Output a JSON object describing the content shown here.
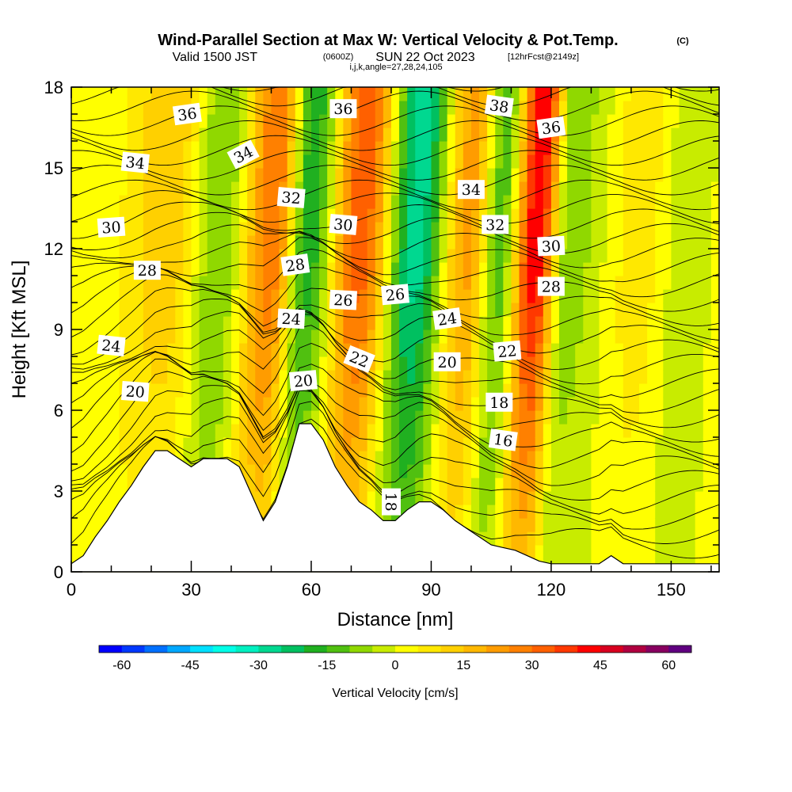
{
  "header": {
    "title": "Wind-Parallel Section at Max W: Vertical Velocity & Pot.Temp.",
    "copyright": "(C)",
    "valid_prefix": "Valid 1500 JST",
    "valid_utc": "(0600Z)",
    "valid_date": "SUN 22 Oct 2023",
    "forecast": "[12hrFcst@2149z]",
    "indices": "i,j,k,angle=27,28,24,105"
  },
  "chart_data": {
    "type": "heatmap",
    "xlabel": "Distance [nm]",
    "ylabel": "Height [Kft MSL]",
    "xlim": [
      0,
      162
    ],
    "ylim": [
      0,
      18
    ],
    "xticks": [
      "0",
      "30",
      "60",
      "90",
      "120",
      "150"
    ],
    "yticks": [
      "0",
      "3",
      "6",
      "9",
      "12",
      "15",
      "18"
    ],
    "terrain": {
      "x": [
        0,
        3,
        6,
        9,
        12,
        15,
        18,
        21,
        24,
        27,
        30,
        33,
        36,
        39,
        42,
        45,
        48,
        51,
        54,
        57,
        60,
        63,
        66,
        69,
        72,
        75,
        78,
        81,
        84,
        87,
        90,
        93,
        96,
        99,
        102,
        105,
        108,
        111,
        114,
        117,
        120,
        123,
        126,
        129,
        132,
        135,
        138,
        141,
        144,
        147,
        150,
        153,
        156,
        159,
        162
      ],
      "height_kft": [
        0.3,
        0.6,
        1.3,
        1.9,
        2.6,
        3.2,
        3.9,
        4.5,
        4.5,
        4.2,
        3.9,
        4.2,
        4.2,
        4.2,
        3.9,
        2.9,
        1.9,
        2.6,
        3.9,
        5.5,
        5.5,
        4.9,
        3.9,
        3.2,
        2.6,
        2.3,
        1.9,
        1.9,
        2.3,
        2.6,
        2.6,
        2.3,
        1.9,
        1.6,
        1.3,
        1.0,
        0.9,
        0.8,
        0.6,
        0.4,
        0.3,
        0.3,
        0.3,
        0.3,
        0.3,
        0.6,
        0.3,
        0.3,
        0.3,
        0.3,
        0.3,
        0.3,
        0.3,
        0.3,
        0.3
      ]
    },
    "updrafts_cm_s": [
      {
        "x": 0,
        "w": 0
      },
      {
        "x": 20,
        "w": 14
      },
      {
        "x": 33,
        "w": -10
      },
      {
        "x": 46,
        "w": 30
      },
      {
        "x": 55,
        "w": -18
      },
      {
        "x": 68,
        "w": 34
      },
      {
        "x": 82,
        "w": -28
      },
      {
        "x": 95,
        "w": 22
      },
      {
        "x": 103,
        "w": -12
      },
      {
        "x": 112,
        "w": 45
      },
      {
        "x": 120,
        "w": -8
      },
      {
        "x": 138,
        "w": 8
      },
      {
        "x": 150,
        "w": -4
      },
      {
        "x": 162,
        "w": 4
      }
    ],
    "potential_temperature_labels": [
      {
        "text": "36",
        "x": 29,
        "y": 17.0,
        "angle": 8
      },
      {
        "text": "34",
        "x": 16,
        "y": 15.2,
        "angle": -6
      },
      {
        "text": "34",
        "x": 43,
        "y": 15.5,
        "angle": 28
      },
      {
        "text": "36",
        "x": 68,
        "y": 17.2,
        "angle": 0
      },
      {
        "text": "38",
        "x": 107,
        "y": 17.3,
        "angle": -8
      },
      {
        "text": "36",
        "x": 120,
        "y": 16.5,
        "angle": 8
      },
      {
        "text": "30",
        "x": 10,
        "y": 12.8,
        "angle": 4
      },
      {
        "text": "32",
        "x": 55,
        "y": 13.9,
        "angle": -5
      },
      {
        "text": "34",
        "x": 100,
        "y": 14.2,
        "angle": 0
      },
      {
        "text": "30",
        "x": 68,
        "y": 12.9,
        "angle": -5
      },
      {
        "text": "32",
        "x": 106,
        "y": 12.9,
        "angle": 0
      },
      {
        "text": "30",
        "x": 120,
        "y": 12.1,
        "angle": 3
      },
      {
        "text": "28",
        "x": 19,
        "y": 11.2,
        "angle": 0
      },
      {
        "text": "28",
        "x": 56,
        "y": 11.4,
        "angle": 8
      },
      {
        "text": "26",
        "x": 68,
        "y": 10.1,
        "angle": -3
      },
      {
        "text": "26",
        "x": 81,
        "y": 10.3,
        "angle": 5
      },
      {
        "text": "28",
        "x": 120,
        "y": 10.6,
        "angle": 0
      },
      {
        "text": "24",
        "x": 55,
        "y": 9.4,
        "angle": -3
      },
      {
        "text": "24",
        "x": 94,
        "y": 9.4,
        "angle": 8
      },
      {
        "text": "24",
        "x": 10,
        "y": 8.4,
        "angle": -6
      },
      {
        "text": "22",
        "x": 72,
        "y": 7.9,
        "angle": -22
      },
      {
        "text": "22",
        "x": 109,
        "y": 8.2,
        "angle": 5
      },
      {
        "text": "20",
        "x": 94,
        "y": 7.8,
        "angle": 0
      },
      {
        "text": "20",
        "x": 58,
        "y": 7.1,
        "angle": 5
      },
      {
        "text": "20",
        "x": 16,
        "y": 6.7,
        "angle": -4
      },
      {
        "text": "18",
        "x": 107,
        "y": 6.3,
        "angle": 0
      },
      {
        "text": "16",
        "x": 108,
        "y": 4.9,
        "angle": -8
      },
      {
        "text": "18",
        "x": 80,
        "y": 2.6,
        "angle": -90
      }
    ],
    "colorbar": {
      "label": "Vertical Velocity [cm/s]",
      "min": -65,
      "max": 65,
      "step": 5,
      "ticks": [
        "-60",
        "-45",
        "-30",
        "-15",
        "0",
        "15",
        "30",
        "45",
        "60"
      ],
      "colors": [
        "#0000ff",
        "#0038ff",
        "#0070ff",
        "#00a8ff",
        "#00e0ff",
        "#00ffe8",
        "#00f0c0",
        "#00d890",
        "#00c060",
        "#20b020",
        "#50c010",
        "#90d800",
        "#c8ec00",
        "#ffff00",
        "#ffe800",
        "#ffd000",
        "#ffb800",
        "#ff9c00",
        "#ff8000",
        "#ff6000",
        "#ff3800",
        "#ff0000",
        "#d80020",
        "#b00040",
        "#880060",
        "#600080"
      ]
    }
  }
}
